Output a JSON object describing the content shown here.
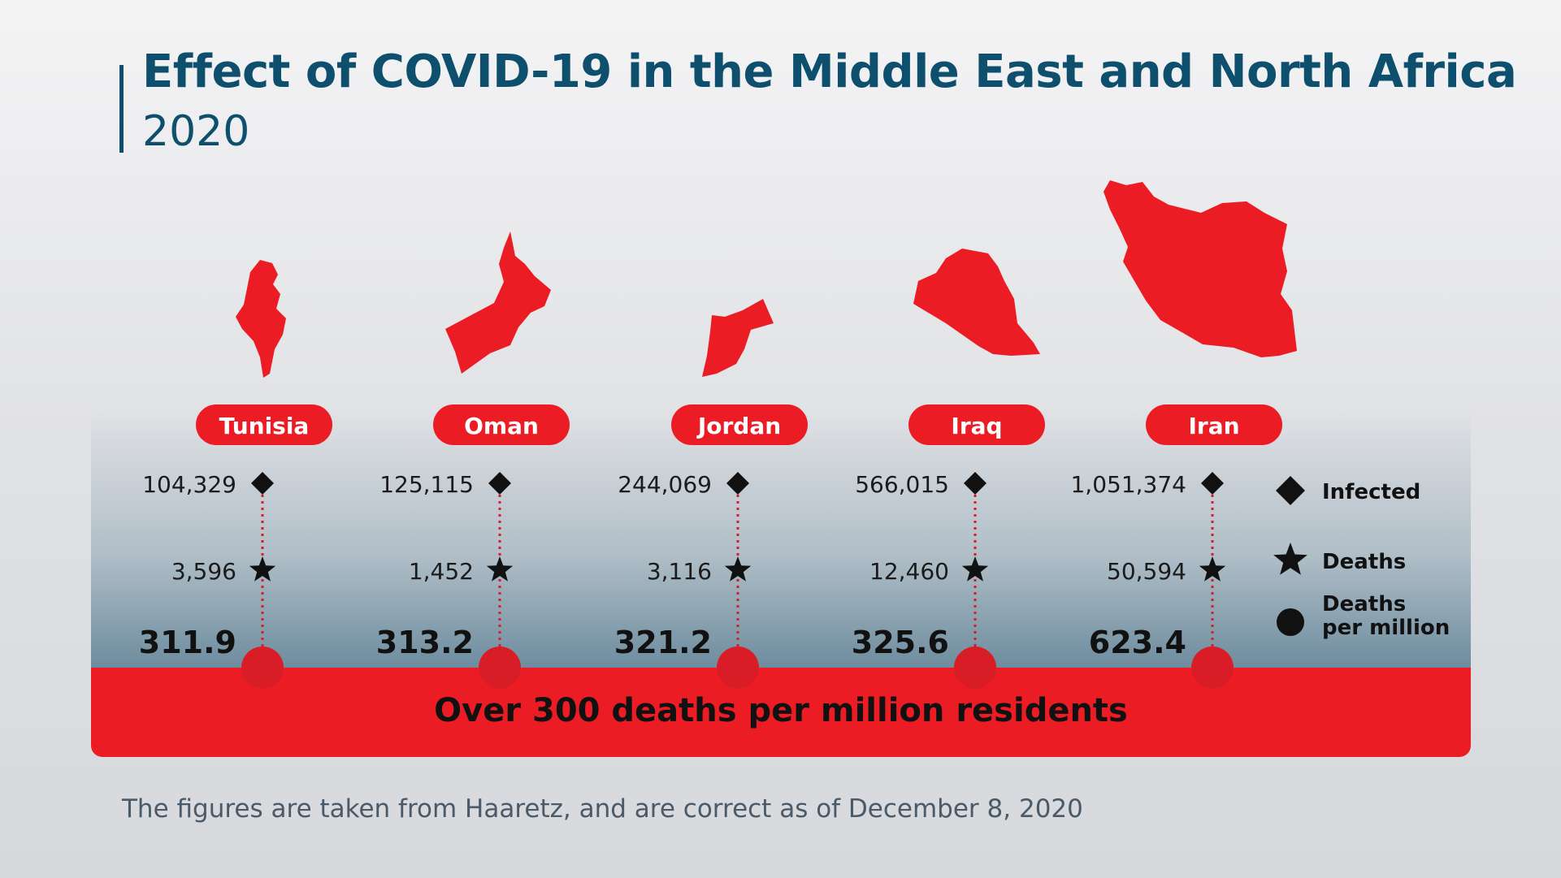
{
  "title": "Effect of COVID-19 in the Middle East and North Africa",
  "subtitle": "2020",
  "banner": "Over 300 deaths per million residents",
  "footer": "The figures are taken from Haaretz, and are correct as of December 8, 2020",
  "colors": {
    "accent": "#ec1c24",
    "title": "#0d4f6c",
    "text": "#111111",
    "dot": "#d91d27"
  },
  "chart_data": {
    "type": "table",
    "title": "Effect of COVID-19 in the Middle East and North Africa",
    "subtitle": "2020",
    "categories": [
      "Tunisia",
      "Oman",
      "Jordan",
      "Iraq",
      "Iran"
    ],
    "series": [
      {
        "name": "Infected",
        "marker": "diamond",
        "values": [
          104329,
          125115,
          244069,
          566015,
          1051374
        ],
        "labels": [
          "104,329",
          "125,115",
          "244,069",
          "566,015",
          "1,051,374"
        ]
      },
      {
        "name": "Deaths",
        "marker": "star",
        "values": [
          3596,
          1452,
          3116,
          12460,
          50594
        ],
        "labels": [
          "3,596",
          "1,452",
          "3,116",
          "12,460",
          "50,594"
        ]
      },
      {
        "name": "Deaths per million",
        "marker": "circle",
        "values": [
          311.9,
          313.2,
          321.2,
          325.6,
          623.4
        ],
        "labels": [
          "311.9",
          "313.2",
          "321.2",
          "325.6",
          "623.4"
        ]
      }
    ],
    "legend": {
      "placement": "right",
      "entries": [
        {
          "marker": "diamond",
          "lines": [
            "Infected"
          ]
        },
        {
          "marker": "star",
          "lines": [
            "Deaths"
          ]
        },
        {
          "marker": "circle",
          "lines": [
            "Deaths",
            "per million"
          ]
        }
      ]
    }
  }
}
